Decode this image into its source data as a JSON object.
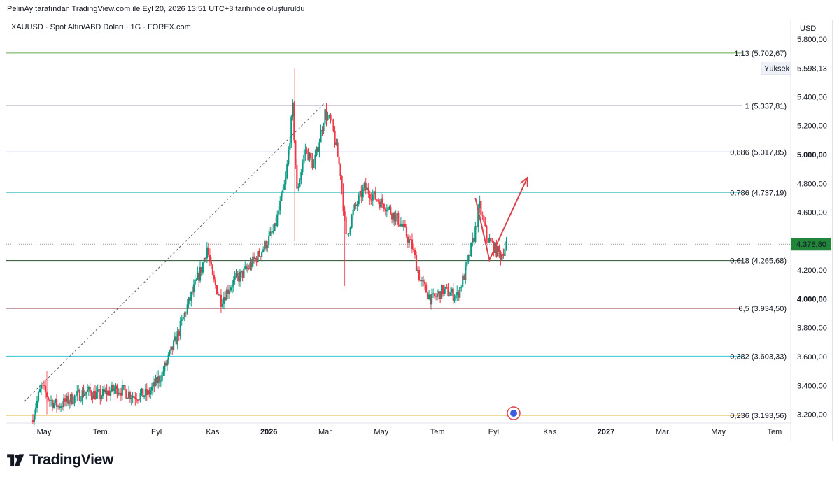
{
  "attribution": "PelinAy tarafından TradingView.com ile Eyl 20, 2026 13:51 UTC+3 tarihinde oluşturuldu",
  "symbol": "XAUUSD · Spot Altın/ABD Doları · 1G · FOREX.com",
  "currency_label": "USD",
  "high_label": "Yüksek",
  "high_value": "5.598,13",
  "current_price": "4.378,80",
  "brand": "TradingView",
  "colors": {
    "up": "#089981",
    "down": "#f23645",
    "fib_113": "#6aa84f",
    "fib_1": "#4a3b6b",
    "fib_0886": "#5b7fd1",
    "fib_0786": "#4cc3c3",
    "fib_0618": "#2f4f2f",
    "fib_05": "#8b3a3a",
    "fib_0382": "#35c4d4",
    "fib_0236": "#e0b030",
    "arrow": "#d9434f",
    "price_tag": "#22863a"
  },
  "chart_data": {
    "type": "candlestick",
    "ylim": [
      3140,
      5930
    ],
    "y_ticks": [
      {
        "value": 3200,
        "label": "3.200,00"
      },
      {
        "value": 3400,
        "label": "3.400,00"
      },
      {
        "value": 3600,
        "label": "3.600,00"
      },
      {
        "value": 3800,
        "label": "3.800,00"
      },
      {
        "value": 4000,
        "label": "4.000,00",
        "bold": true
      },
      {
        "value": 4200,
        "label": "4.200,00"
      },
      {
        "value": 4400,
        "label": "4.400,00"
      },
      {
        "value": 4600,
        "label": "4.600,00"
      },
      {
        "value": 4800,
        "label": "4.800,00"
      },
      {
        "value": 5000,
        "label": "5.000,00",
        "bold": true
      },
      {
        "value": 5200,
        "label": "5.200,00"
      },
      {
        "value": 5400,
        "label": "5.400,00"
      },
      {
        "value": 5800,
        "label": "5.800,00"
      }
    ],
    "x_ticks": [
      {
        "month": 0,
        "label": "May"
      },
      {
        "month": 2,
        "label": "Tem"
      },
      {
        "month": 4,
        "label": "Eyl"
      },
      {
        "month": 6,
        "label": "Kas"
      },
      {
        "month": 8,
        "label": "2026",
        "bold": true
      },
      {
        "month": 10,
        "label": "Mar"
      },
      {
        "month": 12,
        "label": "May"
      },
      {
        "month": 14,
        "label": "Tem"
      },
      {
        "month": 16,
        "label": "Eyl"
      },
      {
        "month": 18,
        "label": "Kas"
      },
      {
        "month": 20,
        "label": "2027",
        "bold": true
      },
      {
        "month": 22,
        "label": "Mar"
      },
      {
        "month": 24,
        "label": "May"
      },
      {
        "month": 26,
        "label": "Tem"
      }
    ],
    "fib_levels": [
      {
        "ratio": "1,13",
        "price": 5702.67,
        "label": "1,13 (5.702,67)",
        "color_key": "fib_113"
      },
      {
        "ratio": "1",
        "price": 5337.81,
        "label": "1 (5.337,81)",
        "color_key": "fib_1"
      },
      {
        "ratio": "0,886",
        "price": 5017.85,
        "label": "0,886 (5.017,85)",
        "color_key": "fib_0886"
      },
      {
        "ratio": "0,786",
        "price": 4737.19,
        "label": "0,786 (4.737,19)",
        "color_key": "fib_0786"
      },
      {
        "ratio": "0,618",
        "price": 4265.68,
        "label": "0,618 (4.265,68)",
        "color_key": "fib_0618"
      },
      {
        "ratio": "0,5",
        "price": 3934.5,
        "label": "0,5 (3.934,50)",
        "color_key": "fib_05"
      },
      {
        "ratio": "0,382",
        "price": 3603.33,
        "label": "0,382 (3.603,33)",
        "color_key": "fib_0382"
      },
      {
        "ratio": "0,236",
        "price": 3193.56,
        "label": "0,236 (3.193,56)",
        "color_key": "fib_0236"
      }
    ],
    "high": 5598.13,
    "last_price": 4378.8,
    "trendline": {
      "start": {
        "month": -0.7,
        "price": 3290
      },
      "end": {
        "month": 10.0,
        "price": 5360
      }
    },
    "projection": [
      {
        "month": 15.35,
        "price": 4700
      },
      {
        "month": 15.85,
        "price": 4270
      },
      {
        "month": 17.2,
        "price": 4840
      }
    ],
    "price_path": [
      {
        "month": -0.45,
        "price": 3160
      },
      {
        "month": -0.1,
        "price": 3390
      },
      {
        "month": 0.2,
        "price": 3300
      },
      {
        "month": 0.5,
        "price": 3260
      },
      {
        "month": 0.9,
        "price": 3300
      },
      {
        "month": 1.5,
        "price": 3360
      },
      {
        "month": 2.0,
        "price": 3330
      },
      {
        "month": 2.6,
        "price": 3380
      },
      {
        "month": 3.2,
        "price": 3330
      },
      {
        "month": 3.7,
        "price": 3340
      },
      {
        "month": 4.2,
        "price": 3480
      },
      {
        "month": 4.7,
        "price": 3720
      },
      {
        "month": 5.1,
        "price": 3950
      },
      {
        "month": 5.6,
        "price": 4210
      },
      {
        "month": 5.8,
        "price": 4360
      },
      {
        "month": 6.0,
        "price": 4140
      },
      {
        "month": 6.3,
        "price": 3990
      },
      {
        "month": 6.7,
        "price": 4110
      },
      {
        "month": 7.2,
        "price": 4200
      },
      {
        "month": 7.7,
        "price": 4320
      },
      {
        "month": 8.2,
        "price": 4480
      },
      {
        "month": 8.6,
        "price": 4820
      },
      {
        "month": 8.85,
        "price": 5320
      },
      {
        "month": 9.0,
        "price": 4740
      },
      {
        "month": 9.3,
        "price": 5040
      },
      {
        "month": 9.6,
        "price": 4920
      },
      {
        "month": 10.0,
        "price": 5290
      },
      {
        "month": 10.25,
        "price": 5200
      },
      {
        "month": 10.55,
        "price": 4880
      },
      {
        "month": 10.75,
        "price": 4420
      },
      {
        "month": 11.0,
        "price": 4600
      },
      {
        "month": 11.4,
        "price": 4770
      },
      {
        "month": 11.8,
        "price": 4700
      },
      {
        "month": 12.2,
        "price": 4640
      },
      {
        "month": 12.7,
        "price": 4520
      },
      {
        "month": 13.1,
        "price": 4360
      },
      {
        "month": 13.4,
        "price": 4120
      },
      {
        "month": 13.8,
        "price": 3990
      },
      {
        "month": 14.2,
        "price": 4060
      },
      {
        "month": 14.7,
        "price": 4020
      },
      {
        "month": 15.0,
        "price": 4190
      },
      {
        "month": 15.3,
        "price": 4430
      },
      {
        "month": 15.5,
        "price": 4640
      },
      {
        "month": 15.75,
        "price": 4430
      },
      {
        "month": 16.0,
        "price": 4360
      },
      {
        "month": 16.25,
        "price": 4300
      },
      {
        "month": 16.45,
        "price": 4378.8
      }
    ],
    "spikes": [
      {
        "month": 8.92,
        "high": 5598.13,
        "low": 4400
      },
      {
        "month": 10.7,
        "high": 4650,
        "low": 4090
      },
      {
        "month": 0.1,
        "high": 3500,
        "low": 3200
      }
    ]
  }
}
